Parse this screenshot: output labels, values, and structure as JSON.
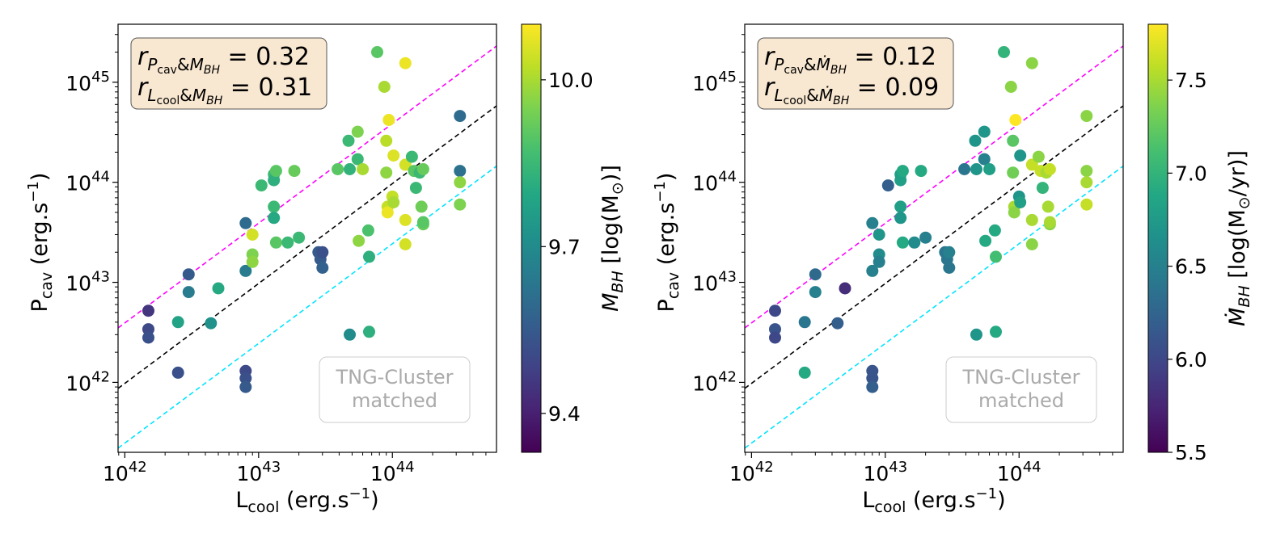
{
  "chart_data": [
    {
      "type": "scatter",
      "x_scale": "log",
      "y_scale": "log",
      "xlim": [
        8.9e+41,
        6e+44
      ],
      "ylim": [
        2e+41,
        3.8e+45
      ],
      "x_ticks": [
        {
          "value": 1e+42,
          "mantissa": "10",
          "exp": "42"
        },
        {
          "value": 1e+43,
          "mantissa": "10",
          "exp": "43"
        },
        {
          "value": 1e+44,
          "mantissa": "10",
          "exp": "44"
        }
      ],
      "y_ticks": [
        {
          "value": 1e+42,
          "mantissa": "10",
          "exp": "42"
        },
        {
          "value": 1e+43,
          "mantissa": "10",
          "exp": "43"
        },
        {
          "value": 1e+44,
          "mantissa": "10",
          "exp": "44"
        },
        {
          "value": 1e+45,
          "mantissa": "10",
          "exp": "45"
        }
      ],
      "xlabel": {
        "main": "L",
        "sub": "cool",
        "rest": " (erg.s",
        "sup": "−1",
        "close": ")"
      },
      "ylabel": {
        "main": "P",
        "sub": "cav",
        "rest": " (erg.s",
        "sup": "−1",
        "close": ")"
      },
      "stats": {
        "line1": {
          "r": "r",
          "sub_a": "P",
          "sub_a_sub": "cav",
          "amp": "&",
          "sub_b": "M",
          "sub_b_sub": "BH",
          "value": " = 0.32"
        },
        "line2": {
          "r": "r",
          "sub_a": "L",
          "sub_a_sub": "cool",
          "amp": "&",
          "sub_b": "M",
          "sub_b_sub": "BH",
          "value": " = 0.31"
        }
      },
      "watermark": [
        "TNG-Cluster",
        "matched"
      ],
      "reference_lines": [
        {
          "color": "#ff00ff",
          "style": "dashed",
          "points": [
            [
              8.9e+41,
              3.5e+42
            ],
            [
              6e+44,
              2.3e+45
            ]
          ]
        },
        {
          "color": "#000000",
          "style": "dashed",
          "points": [
            [
              8.9e+41,
              8.7e+41
            ],
            [
              6e+44,
              5.8e+44
            ]
          ]
        },
        {
          "color": "#00e5ff",
          "style": "dashed",
          "points": [
            [
              8.9e+41,
              2.2e+41
            ],
            [
              6e+44,
              1.45e+44
            ]
          ]
        }
      ],
      "colorbar": {
        "label": {
          "main": "M",
          "sub": "BH",
          "rest": " [log(M",
          "sun": "⊙",
          "close": ")]"
        },
        "range": [
          9.33,
          10.1
        ],
        "ticks": [
          9.4,
          9.7,
          10.0
        ],
        "tick_labels": [
          "9.4",
          "9.7",
          "10.0"
        ],
        "colormap": "viridis"
      },
      "points": [
        {
          "x": 1.5e+42,
          "y": 5.2e+42,
          "c": 9.45
        },
        {
          "x": 1.5e+42,
          "y": 3.4e+42,
          "c": 9.5
        },
        {
          "x": 1.5e+42,
          "y": 2.8e+42,
          "c": 9.52
        },
        {
          "x": 2.5e+42,
          "y": 4e+42,
          "c": 9.78
        },
        {
          "x": 2.5e+42,
          "y": 1.25e+42,
          "c": 9.52
        },
        {
          "x": 3e+42,
          "y": 1.2e+43,
          "c": 9.55
        },
        {
          "x": 3e+42,
          "y": 8e+42,
          "c": 9.65
        },
        {
          "x": 4.4e+42,
          "y": 3.9e+42,
          "c": 9.72
        },
        {
          "x": 5e+42,
          "y": 8.7e+42,
          "c": 9.8
        },
        {
          "x": 8e+42,
          "y": 3.9e+43,
          "c": 9.6
        },
        {
          "x": 8e+42,
          "y": 1.3e+43,
          "c": 9.65
        },
        {
          "x": 8e+42,
          "y": 1.3e+42,
          "c": 9.5
        },
        {
          "x": 8e+42,
          "y": 1.1e+42,
          "c": 9.52
        },
        {
          "x": 8e+42,
          "y": 9e+41,
          "c": 9.55
        },
        {
          "x": 9e+42,
          "y": 3e+43,
          "c": 10.05
        },
        {
          "x": 9e+42,
          "y": 1.9e+43,
          "c": 9.95
        },
        {
          "x": 9e+42,
          "y": 1.6e+43,
          "c": 9.97
        },
        {
          "x": 1.05e+43,
          "y": 9.3e+43,
          "c": 9.85
        },
        {
          "x": 1.3e+43,
          "y": 1.2e+44,
          "c": 9.85
        },
        {
          "x": 1.3e+43,
          "y": 1.05e+44,
          "c": 9.82
        },
        {
          "x": 1.3e+43,
          "y": 5.7e+43,
          "c": 9.85
        },
        {
          "x": 1.3e+43,
          "y": 4.4e+43,
          "c": 9.8
        },
        {
          "x": 1.35e+43,
          "y": 1.3e+44,
          "c": 9.9
        },
        {
          "x": 1.35e+43,
          "y": 2.5e+43,
          "c": 9.9
        },
        {
          "x": 1.65e+43,
          "y": 2.5e+43,
          "c": 9.85
        },
        {
          "x": 1.85e+43,
          "y": 1.3e+44,
          "c": 9.92
        },
        {
          "x": 2e+43,
          "y": 2.8e+43,
          "c": 9.85
        },
        {
          "x": 2.8e+43,
          "y": 2e+43,
          "c": 9.55
        },
        {
          "x": 2.9e+43,
          "y": 1.7e+43,
          "c": 9.55
        },
        {
          "x": 3e+43,
          "y": 1.4e+43,
          "c": 9.57
        },
        {
          "x": 3e+43,
          "y": 2e+43,
          "c": 9.52
        },
        {
          "x": 3.9e+43,
          "y": 1.35e+44,
          "c": 9.9
        },
        {
          "x": 4.7e+43,
          "y": 2.6e+44,
          "c": 9.85
        },
        {
          "x": 4.8e+43,
          "y": 1.35e+44,
          "c": 9.83
        },
        {
          "x": 4.8e+43,
          "y": 3e+42,
          "c": 9.7
        },
        {
          "x": 5.5e+43,
          "y": 3.2e+44,
          "c": 9.95
        },
        {
          "x": 5.5e+43,
          "y": 1.7e+44,
          "c": 9.85
        },
        {
          "x": 5.6e+43,
          "y": 2.6e+43,
          "c": 9.97
        },
        {
          "x": 6e+43,
          "y": 1.35e+44,
          "c": 10.0
        },
        {
          "x": 6.6e+43,
          "y": 3.3e+43,
          "c": 9.88
        },
        {
          "x": 6.7e+43,
          "y": 1.8e+43,
          "c": 9.82
        },
        {
          "x": 6.7e+43,
          "y": 3.2e+42,
          "c": 9.82
        },
        {
          "x": 7.7e+43,
          "y": 2e+45,
          "c": 9.9
        },
        {
          "x": 8.7e+43,
          "y": 9e+44,
          "c": 10.0
        },
        {
          "x": 9e+43,
          "y": 2.6e+44,
          "c": 10.02
        },
        {
          "x": 9e+43,
          "y": 1.25e+44,
          "c": 9.97
        },
        {
          "x": 9.2e+43,
          "y": 5.7e+43,
          "c": 10.03
        },
        {
          "x": 9.2e+43,
          "y": 5e+43,
          "c": 10.08
        },
        {
          "x": 9.4e+43,
          "y": 4.2e+44,
          "c": 10.08
        },
        {
          "x": 1e+44,
          "y": 7.2e+43,
          "c": 10.03
        },
        {
          "x": 1.02e+44,
          "y": 1.85e+44,
          "c": 10.06
        },
        {
          "x": 1.02e+44,
          "y": 6.3e+43,
          "c": 10.0
        },
        {
          "x": 1.25e+44,
          "y": 1.55e+45,
          "c": 10.08
        },
        {
          "x": 1.25e+44,
          "y": 1.5e+44,
          "c": 10.05
        },
        {
          "x": 1.25e+44,
          "y": 4.2e+43,
          "c": 10.06
        },
        {
          "x": 1.25e+44,
          "y": 2.4e+43,
          "c": 10.05
        },
        {
          "x": 1.4e+44,
          "y": 1.8e+44,
          "c": 9.85
        },
        {
          "x": 1.45e+44,
          "y": 1.3e+44,
          "c": 9.9
        },
        {
          "x": 1.5e+44,
          "y": 8.8e+43,
          "c": 9.85
        },
        {
          "x": 1.6e+44,
          "y": 1.25e+44,
          "c": 9.85
        },
        {
          "x": 1.65e+44,
          "y": 5.7e+43,
          "c": 9.93
        },
        {
          "x": 1.7e+44,
          "y": 1.35e+44,
          "c": 9.92
        },
        {
          "x": 1.7e+44,
          "y": 3.8e+43,
          "c": 9.92
        },
        {
          "x": 1.7e+44,
          "y": 4e+43,
          "c": 9.9
        },
        {
          "x": 3.2e+44,
          "y": 4.6e+44,
          "c": 9.6
        },
        {
          "x": 3.2e+44,
          "y": 1.3e+44,
          "c": 9.62
        },
        {
          "x": 3.2e+44,
          "y": 1e+44,
          "c": 9.97
        },
        {
          "x": 3.2e+44,
          "y": 6e+43,
          "c": 9.95
        }
      ]
    },
    {
      "type": "scatter",
      "x_scale": "log",
      "y_scale": "log",
      "xlim": [
        8.9e+41,
        6e+44
      ],
      "ylim": [
        2e+41,
        3.8e+45
      ],
      "x_ticks": [
        {
          "value": 1e+42,
          "mantissa": "10",
          "exp": "42"
        },
        {
          "value": 1e+43,
          "mantissa": "10",
          "exp": "43"
        },
        {
          "value": 1e+44,
          "mantissa": "10",
          "exp": "44"
        }
      ],
      "y_ticks": [
        {
          "value": 1e+42,
          "mantissa": "10",
          "exp": "42"
        },
        {
          "value": 1e+43,
          "mantissa": "10",
          "exp": "43"
        },
        {
          "value": 1e+44,
          "mantissa": "10",
          "exp": "44"
        },
        {
          "value": 1e+45,
          "mantissa": "10",
          "exp": "45"
        }
      ],
      "xlabel": {
        "main": "L",
        "sub": "cool",
        "rest": " (erg.s",
        "sup": "−1",
        "close": ")"
      },
      "ylabel": {
        "main": "P",
        "sub": "cav",
        "rest": " (erg.s",
        "sup": "−1",
        "close": ")"
      },
      "stats": {
        "line1": {
          "r": "r",
          "sub_a": "P",
          "sub_a_sub": "cav",
          "amp": "&",
          "sub_b": "Ṁ",
          "sub_b_sub": "BH",
          "value": " = 0.12"
        },
        "line2": {
          "r": "r",
          "sub_a": "L",
          "sub_a_sub": "cool",
          "amp": "&",
          "sub_b": "Ṁ",
          "sub_b_sub": "BH",
          "value": " = 0.09"
        }
      },
      "watermark": [
        "TNG-Cluster",
        "matched"
      ],
      "reference_lines": [
        {
          "color": "#ff00ff",
          "style": "dashed",
          "points": [
            [
              8.9e+41,
              3.5e+42
            ],
            [
              6e+44,
              2.3e+45
            ]
          ]
        },
        {
          "color": "#000000",
          "style": "dashed",
          "points": [
            [
              8.9e+41,
              8.7e+41
            ],
            [
              6e+44,
              5.8e+44
            ]
          ]
        },
        {
          "color": "#00e5ff",
          "style": "dashed",
          "points": [
            [
              8.9e+41,
              2.2e+41
            ],
            [
              6e+44,
              1.45e+44
            ]
          ]
        }
      ],
      "colorbar": {
        "label": {
          "main": "Ṁ",
          "sub": "BH",
          "rest": " [log(M",
          "sun": "⊙",
          "close": "/yr)]"
        },
        "range": [
          5.5,
          7.8
        ],
        "ticks": [
          5.5,
          6.0,
          6.5,
          7.0,
          7.5
        ],
        "tick_labels": [
          "5.5",
          "6.0",
          "6.5",
          "7.0",
          "7.5"
        ],
        "colormap": "viridis"
      },
      "points": [
        {
          "x": 1.5e+42,
          "y": 5.2e+42,
          "c": 6.0
        },
        {
          "x": 1.5e+42,
          "y": 3.4e+42,
          "c": 6.1
        },
        {
          "x": 1.5e+42,
          "y": 2.8e+42,
          "c": 6.0
        },
        {
          "x": 2.5e+42,
          "y": 4e+42,
          "c": 6.4
        },
        {
          "x": 2.5e+42,
          "y": 1.25e+42,
          "c": 6.9
        },
        {
          "x": 3e+42,
          "y": 1.2e+43,
          "c": 6.3
        },
        {
          "x": 3e+42,
          "y": 8e+42,
          "c": 6.5
        },
        {
          "x": 4.4e+42,
          "y": 3.9e+42,
          "c": 6.2
        },
        {
          "x": 5e+42,
          "y": 8.7e+42,
          "c": 5.8
        },
        {
          "x": 8e+42,
          "y": 3.9e+43,
          "c": 6.5
        },
        {
          "x": 8e+42,
          "y": 1.3e+43,
          "c": 6.5
        },
        {
          "x": 8e+42,
          "y": 1.1e+42,
          "c": 6.1
        },
        {
          "x": 8e+42,
          "y": 9e+41,
          "c": 6.2
        },
        {
          "x": 8e+42,
          "y": 1.3e+42,
          "c": 6.1
        },
        {
          "x": 9e+42,
          "y": 3e+43,
          "c": 6.7
        },
        {
          "x": 9e+42,
          "y": 1.9e+43,
          "c": 6.6
        },
        {
          "x": 9e+42,
          "y": 1.6e+43,
          "c": 6.5
        },
        {
          "x": 1.05e+43,
          "y": 9.3e+43,
          "c": 6.2
        },
        {
          "x": 1.3e+43,
          "y": 1.2e+44,
          "c": 6.8
        },
        {
          "x": 1.3e+43,
          "y": 1.05e+44,
          "c": 6.8
        },
        {
          "x": 1.3e+43,
          "y": 5.7e+43,
          "c": 6.8
        },
        {
          "x": 1.3e+43,
          "y": 4.4e+43,
          "c": 6.7
        },
        {
          "x": 1.35e+43,
          "y": 1.3e+44,
          "c": 6.9
        },
        {
          "x": 1.35e+43,
          "y": 2.5e+43,
          "c": 6.9
        },
        {
          "x": 1.65e+43,
          "y": 2.5e+43,
          "c": 6.6
        },
        {
          "x": 1.85e+43,
          "y": 1.3e+44,
          "c": 6.9
        },
        {
          "x": 2e+43,
          "y": 2.8e+43,
          "c": 6.5
        },
        {
          "x": 2.8e+43,
          "y": 2e+43,
          "c": 6.4
        },
        {
          "x": 2.9e+43,
          "y": 1.7e+43,
          "c": 6.4
        },
        {
          "x": 3e+43,
          "y": 1.4e+43,
          "c": 6.4
        },
        {
          "x": 3e+43,
          "y": 2e+43,
          "c": 6.5
        },
        {
          "x": 3.9e+43,
          "y": 1.35e+44,
          "c": 6.4
        },
        {
          "x": 4.7e+43,
          "y": 2.6e+44,
          "c": 6.7
        },
        {
          "x": 4.8e+43,
          "y": 1.35e+44,
          "c": 6.7
        },
        {
          "x": 4.8e+43,
          "y": 3e+42,
          "c": 6.7
        },
        {
          "x": 5.5e+43,
          "y": 3.2e+44,
          "c": 6.7
        },
        {
          "x": 5.5e+43,
          "y": 1.7e+44,
          "c": 6.5
        },
        {
          "x": 5.6e+43,
          "y": 2.6e+43,
          "c": 6.9
        },
        {
          "x": 6e+43,
          "y": 1.35e+44,
          "c": 6.8
        },
        {
          "x": 6.6e+43,
          "y": 3.3e+43,
          "c": 6.9
        },
        {
          "x": 6.7e+43,
          "y": 1.8e+43,
          "c": 7.1
        },
        {
          "x": 6.7e+43,
          "y": 3.2e+42,
          "c": 6.9
        },
        {
          "x": 7.7e+43,
          "y": 2e+45,
          "c": 7.0
        },
        {
          "x": 8.7e+43,
          "y": 9e+44,
          "c": 7.4
        },
        {
          "x": 9e+43,
          "y": 2.6e+44,
          "c": 7.2
        },
        {
          "x": 9e+43,
          "y": 1.25e+44,
          "c": 7.3
        },
        {
          "x": 9.2e+43,
          "y": 5.7e+43,
          "c": 7.5
        },
        {
          "x": 9.2e+43,
          "y": 5e+43,
          "c": 7.4
        },
        {
          "x": 9.4e+43,
          "y": 4.2e+44,
          "c": 7.8
        },
        {
          "x": 1e+44,
          "y": 7.2e+43,
          "c": 6.7
        },
        {
          "x": 1.02e+44,
          "y": 1.85e+44,
          "c": 6.7
        },
        {
          "x": 1.02e+44,
          "y": 6.3e+43,
          "c": 6.8
        },
        {
          "x": 1.25e+44,
          "y": 1.55e+45,
          "c": 7.4
        },
        {
          "x": 1.25e+44,
          "y": 1.5e+44,
          "c": 7.6
        },
        {
          "x": 1.25e+44,
          "y": 4.2e+43,
          "c": 7.5
        },
        {
          "x": 1.25e+44,
          "y": 2.4e+43,
          "c": 7.4
        },
        {
          "x": 1.4e+44,
          "y": 1.8e+44,
          "c": 7.4
        },
        {
          "x": 1.45e+44,
          "y": 1.3e+44,
          "c": 7.6
        },
        {
          "x": 1.5e+44,
          "y": 8.8e+43,
          "c": 7.0
        },
        {
          "x": 1.6e+44,
          "y": 1.25e+44,
          "c": 7.5
        },
        {
          "x": 1.65e+44,
          "y": 5.7e+43,
          "c": 7.5
        },
        {
          "x": 1.7e+44,
          "y": 1.35e+44,
          "c": 7.6
        },
        {
          "x": 1.7e+44,
          "y": 3.8e+43,
          "c": 7.4
        },
        {
          "x": 1.7e+44,
          "y": 4e+43,
          "c": 7.5
        },
        {
          "x": 3.2e+44,
          "y": 4.6e+44,
          "c": 7.4
        },
        {
          "x": 3.2e+44,
          "y": 1.3e+44,
          "c": 7.4
        },
        {
          "x": 3.2e+44,
          "y": 1e+44,
          "c": 7.5
        },
        {
          "x": 3.2e+44,
          "y": 6e+43,
          "c": 7.6
        }
      ]
    }
  ]
}
